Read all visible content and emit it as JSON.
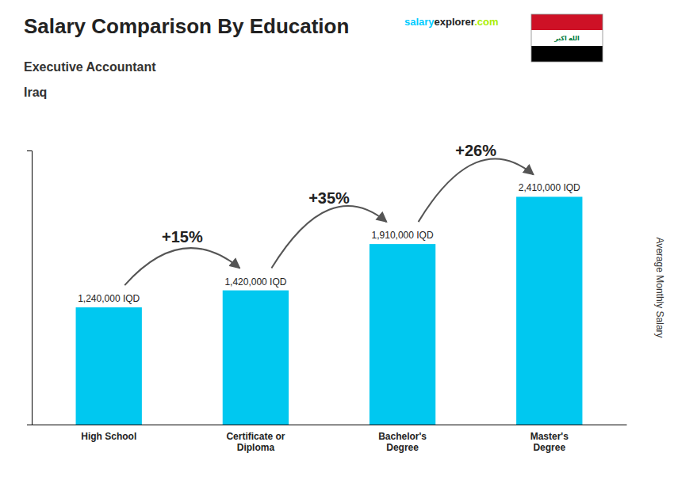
{
  "chart_data": {
    "type": "bar",
    "title": "Salary Comparison By Education",
    "subtitle": "Executive Accountant",
    "country": "Iraq",
    "ylabel": "Average Monthly Salary",
    "categories": [
      "High School",
      "Certificate or\nDiploma",
      "Bachelor's\nDegree",
      "Master's\nDegree"
    ],
    "values": [
      1240000,
      1420000,
      1910000,
      2410000
    ],
    "value_labels": [
      "1,240,000 IQD",
      "1,420,000 IQD",
      "1,910,000 IQD",
      "2,410,000 IQD"
    ],
    "color": "#00c8f0",
    "ylim": [
      0,
      2900000
    ],
    "yticks": [],
    "tick_labels": "x",
    "grid": false,
    "annotations": [
      "+15%",
      "+35%",
      "+26%"
    ],
    "brand": [
      {
        "text": "salary",
        "color": "#00ccff"
      },
      {
        "text": "explorer"
      },
      {
        "text": ".com",
        "color": "#aaee00"
      }
    ],
    "flag": {
      "colors": [
        "#ce1126",
        "#ffffff",
        "#000000"
      ],
      "text": "الله اكبر",
      "text_color": "#007a3d"
    }
  }
}
